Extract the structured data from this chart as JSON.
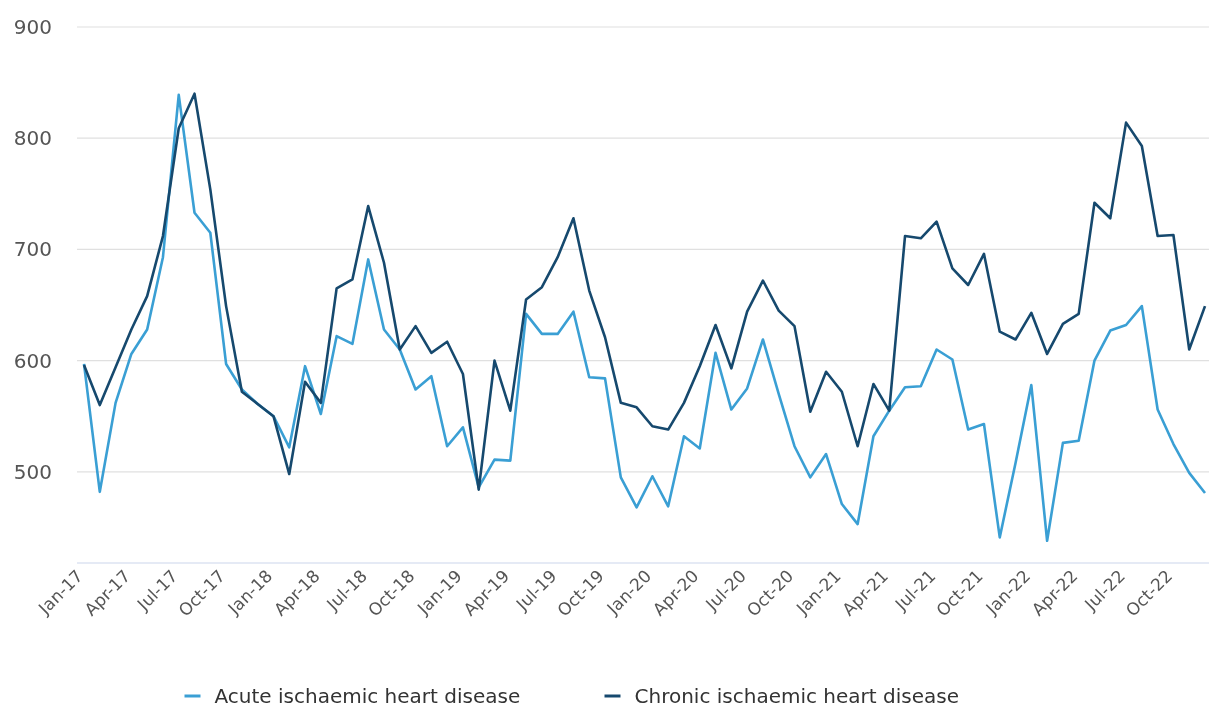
{
  "chart_data": {
    "type": "line",
    "categories": [
      "Jan-17",
      null,
      null,
      "Apr-17",
      null,
      null,
      "Jul-17",
      null,
      null,
      "Oct-17",
      null,
      null,
      "Jan-18",
      null,
      null,
      "Apr-18",
      null,
      null,
      "Jul-18",
      null,
      null,
      "Oct-18",
      null,
      null,
      "Jan-19",
      null,
      null,
      "Apr-19",
      null,
      null,
      "Jul-19",
      null,
      null,
      "Oct-19",
      null,
      null,
      "Jan-20",
      null,
      null,
      "Apr-20",
      null,
      null,
      "Jul-20",
      null,
      null,
      "Oct-20",
      null,
      null,
      "Jan-21",
      null,
      null,
      "Apr-21",
      null,
      null,
      "Jul-21",
      null,
      null,
      "Oct-21",
      null,
      null,
      "Jan-22",
      null,
      null,
      "Apr-22",
      null,
      null,
      "Jul-22",
      null,
      null,
      "Oct-22",
      null,
      null
    ],
    "series": [
      {
        "name": "Acute ischaemic heart disease",
        "color": "#3a9fd4",
        "values": [
          597,
          482,
          562,
          606,
          628,
          693,
          839,
          733,
          715,
          597,
          574,
          561,
          550,
          522,
          595,
          552,
          622,
          615,
          691,
          628,
          610,
          574,
          586,
          523,
          540,
          486,
          511,
          510,
          642,
          624,
          624,
          644,
          585,
          584,
          495,
          468,
          496,
          469,
          532,
          521,
          607,
          556,
          575,
          619,
          570,
          523,
          495,
          516,
          471,
          453,
          532,
          555,
          576,
          577,
          610,
          601,
          538,
          543,
          441,
          508,
          578,
          438,
          526,
          528,
          600,
          627,
          632,
          649,
          556,
          525,
          499,
          481
        ]
      },
      {
        "name": "Chronic ischaemic heart disease",
        "color": "#16496e",
        "values": [
          596,
          560,
          594,
          628,
          658,
          712,
          809,
          840,
          754,
          649,
          572,
          561,
          550,
          498,
          581,
          562,
          665,
          673,
          739,
          688,
          610,
          631,
          607,
          617,
          588,
          484,
          600,
          555,
          655,
          666,
          693,
          728,
          663,
          621,
          562,
          558,
          541,
          538,
          562,
          595,
          632,
          593,
          644,
          672,
          645,
          631,
          554,
          590,
          572,
          523,
          579,
          555,
          712,
          710,
          725,
          683,
          668,
          696,
          626,
          619,
          643,
          606,
          633,
          642,
          742,
          728,
          814,
          793,
          712,
          713,
          610,
          649
        ]
      }
    ],
    "ylim": [
      418,
      900
    ],
    "yticks": [
      500,
      600,
      700,
      800,
      900
    ],
    "grid": "y",
    "legend": "bottom",
    "marker": "none",
    "line_style": "solid"
  }
}
